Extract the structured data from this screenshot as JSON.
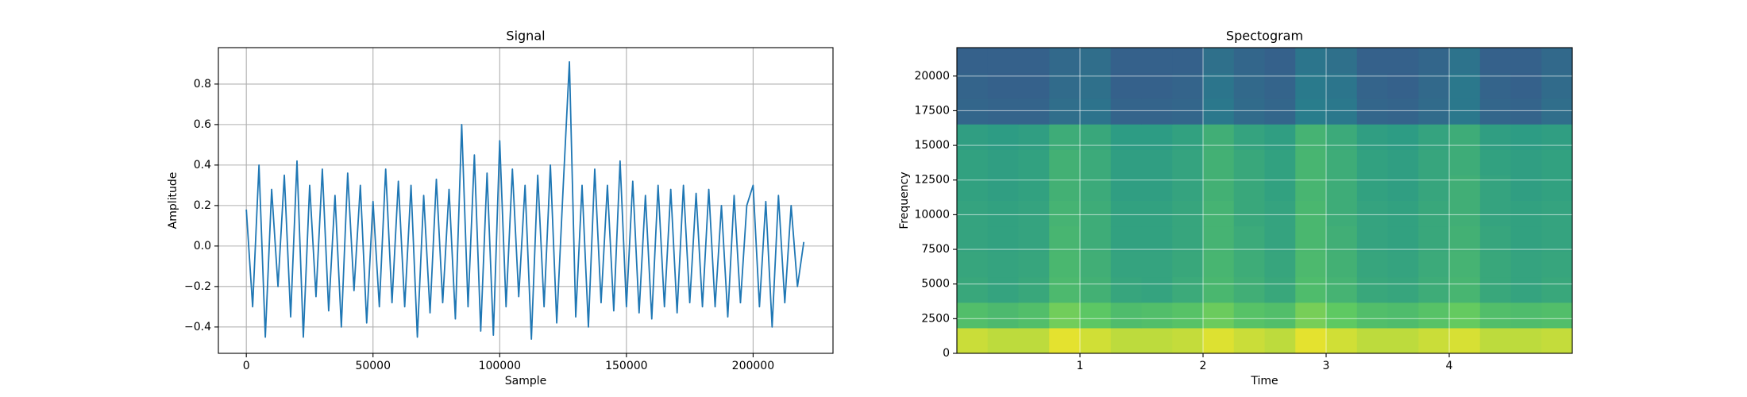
{
  "chart_data": [
    {
      "type": "line",
      "title": "Signal",
      "xlabel": "Sample",
      "ylabel": "Amplitude",
      "color": "#1f77b4",
      "grid": true,
      "xlim": [
        -11025,
        231525
      ],
      "ylim": [
        -0.53,
        0.98
      ],
      "xticks": [
        0,
        50000,
        100000,
        150000,
        200000
      ],
      "yticks": [
        {
          "value": -0.4,
          "label": "−0.4"
        },
        {
          "value": -0.2,
          "label": "−0.2"
        },
        {
          "value": 0,
          "label": "0.0"
        },
        0.2,
        0.4,
        0.6,
        0.8
      ],
      "x": [
        0,
        2500,
        5000,
        7500,
        10000,
        12500,
        15000,
        17500,
        20000,
        22500,
        25000,
        27500,
        30000,
        32500,
        35000,
        37500,
        40000,
        42500,
        45000,
        47500,
        50000,
        52500,
        55000,
        57500,
        60000,
        62500,
        65000,
        67500,
        70000,
        72500,
        75000,
        77500,
        80000,
        82500,
        85000,
        87500,
        90000,
        92500,
        95000,
        97500,
        100000,
        102500,
        105000,
        107500,
        110000,
        112500,
        115000,
        117500,
        120000,
        122500,
        125000,
        127500,
        130000,
        132500,
        135000,
        137500,
        140000,
        142500,
        145000,
        147500,
        150000,
        152500,
        155000,
        157500,
        160000,
        162500,
        165000,
        167500,
        170000,
        172500,
        175000,
        177500,
        180000,
        182500,
        185000,
        187500,
        190000,
        192500,
        195000,
        197500,
        200000,
        202500,
        205000,
        207500,
        210000,
        212500,
        215000,
        217500,
        220000
      ],
      "values": [
        0.18,
        -0.3,
        0.4,
        -0.45,
        0.28,
        -0.2,
        0.35,
        -0.35,
        0.42,
        -0.45,
        0.3,
        -0.25,
        0.38,
        -0.32,
        0.25,
        -0.4,
        0.36,
        -0.22,
        0.3,
        -0.38,
        0.22,
        -0.3,
        0.38,
        -0.28,
        0.32,
        -0.3,
        0.3,
        -0.45,
        0.25,
        -0.33,
        0.33,
        -0.28,
        0.28,
        -0.36,
        0.6,
        -0.3,
        0.45,
        -0.42,
        0.36,
        -0.44,
        0.52,
        -0.3,
        0.38,
        -0.25,
        0.3,
        -0.46,
        0.35,
        -0.3,
        0.4,
        -0.38,
        0.28,
        0.91,
        -0.35,
        0.3,
        -0.4,
        0.38,
        -0.28,
        0.3,
        -0.32,
        0.42,
        -0.3,
        0.32,
        -0.33,
        0.25,
        -0.36,
        0.3,
        -0.3,
        0.28,
        -0.33,
        0.3,
        -0.28,
        0.26,
        -0.3,
        0.28,
        -0.3,
        0.2,
        -0.35,
        0.25,
        -0.28,
        0.2,
        0.3,
        -0.3,
        0.22,
        -0.4,
        0.25,
        -0.28,
        0.2,
        -0.2,
        0.02
      ]
    },
    {
      "type": "heatmap",
      "title": "Spectogram",
      "xlabel": "Time",
      "ylabel": "Frequency",
      "colormap": "viridis",
      "grid": true,
      "xlim": [
        0,
        5
      ],
      "ylim": [
        0,
        22050
      ],
      "xticks": [
        1,
        2,
        3,
        4
      ],
      "yticks": [
        0,
        2500,
        5000,
        7500,
        10000,
        12500,
        15000,
        17500,
        20000
      ],
      "x": [
        0.125,
        0.375,
        0.625,
        0.875,
        1.125,
        1.375,
        1.625,
        1.875,
        2.125,
        2.375,
        2.625,
        2.875,
        3.125,
        3.375,
        3.625,
        3.875,
        4.125,
        4.375,
        4.625,
        4.875
      ],
      "y": [
        918.75,
        2756.25,
        4593.75,
        6431.25,
        8268.75,
        10106.25,
        11943.75,
        13781.25,
        15618.75,
        17456.25,
        19293.75,
        21131.25
      ],
      "z": [
        [
          0.92,
          0.9,
          0.9,
          0.96,
          0.93,
          0.9,
          0.9,
          0.91,
          0.95,
          0.92,
          0.9,
          0.96,
          0.93,
          0.9,
          0.9,
          0.92,
          0.94,
          0.9,
          0.9,
          0.91
        ],
        [
          0.7,
          0.68,
          0.7,
          0.78,
          0.74,
          0.69,
          0.7,
          0.72,
          0.77,
          0.72,
          0.7,
          0.79,
          0.75,
          0.7,
          0.69,
          0.72,
          0.76,
          0.7,
          0.69,
          0.7
        ],
        [
          0.6,
          0.58,
          0.6,
          0.68,
          0.64,
          0.59,
          0.58,
          0.61,
          0.67,
          0.63,
          0.6,
          0.69,
          0.65,
          0.6,
          0.59,
          0.62,
          0.66,
          0.6,
          0.58,
          0.6
        ],
        [
          0.59,
          0.58,
          0.59,
          0.67,
          0.63,
          0.58,
          0.58,
          0.6,
          0.66,
          0.62,
          0.59,
          0.68,
          0.64,
          0.59,
          0.58,
          0.61,
          0.65,
          0.6,
          0.58,
          0.59
        ],
        [
          0.58,
          0.57,
          0.58,
          0.66,
          0.62,
          0.57,
          0.57,
          0.59,
          0.65,
          0.61,
          0.58,
          0.67,
          0.63,
          0.58,
          0.57,
          0.6,
          0.64,
          0.59,
          0.57,
          0.58
        ],
        [
          0.58,
          0.57,
          0.58,
          0.65,
          0.62,
          0.57,
          0.57,
          0.59,
          0.65,
          0.6,
          0.58,
          0.67,
          0.62,
          0.58,
          0.57,
          0.6,
          0.63,
          0.58,
          0.57,
          0.58
        ],
        [
          0.57,
          0.56,
          0.57,
          0.64,
          0.61,
          0.56,
          0.56,
          0.58,
          0.64,
          0.6,
          0.57,
          0.66,
          0.62,
          0.57,
          0.56,
          0.59,
          0.63,
          0.58,
          0.56,
          0.57
        ],
        [
          0.57,
          0.56,
          0.57,
          0.64,
          0.61,
          0.56,
          0.56,
          0.58,
          0.64,
          0.6,
          0.57,
          0.66,
          0.62,
          0.57,
          0.56,
          0.59,
          0.62,
          0.57,
          0.56,
          0.57
        ],
        [
          0.56,
          0.55,
          0.56,
          0.62,
          0.6,
          0.55,
          0.55,
          0.57,
          0.63,
          0.58,
          0.56,
          0.65,
          0.61,
          0.56,
          0.55,
          0.58,
          0.62,
          0.56,
          0.55,
          0.56
        ],
        [
          0.33,
          0.32,
          0.32,
          0.36,
          0.38,
          0.32,
          0.32,
          0.33,
          0.4,
          0.35,
          0.33,
          0.42,
          0.4,
          0.33,
          0.32,
          0.35,
          0.4,
          0.33,
          0.32,
          0.36
        ],
        [
          0.32,
          0.31,
          0.31,
          0.35,
          0.37,
          0.31,
          0.31,
          0.32,
          0.39,
          0.34,
          0.32,
          0.41,
          0.39,
          0.32,
          0.31,
          0.34,
          0.4,
          0.32,
          0.31,
          0.35
        ],
        [
          0.31,
          0.31,
          0.31,
          0.34,
          0.36,
          0.31,
          0.31,
          0.31,
          0.37,
          0.33,
          0.31,
          0.39,
          0.37,
          0.31,
          0.31,
          0.33,
          0.38,
          0.31,
          0.31,
          0.34
        ]
      ]
    }
  ]
}
